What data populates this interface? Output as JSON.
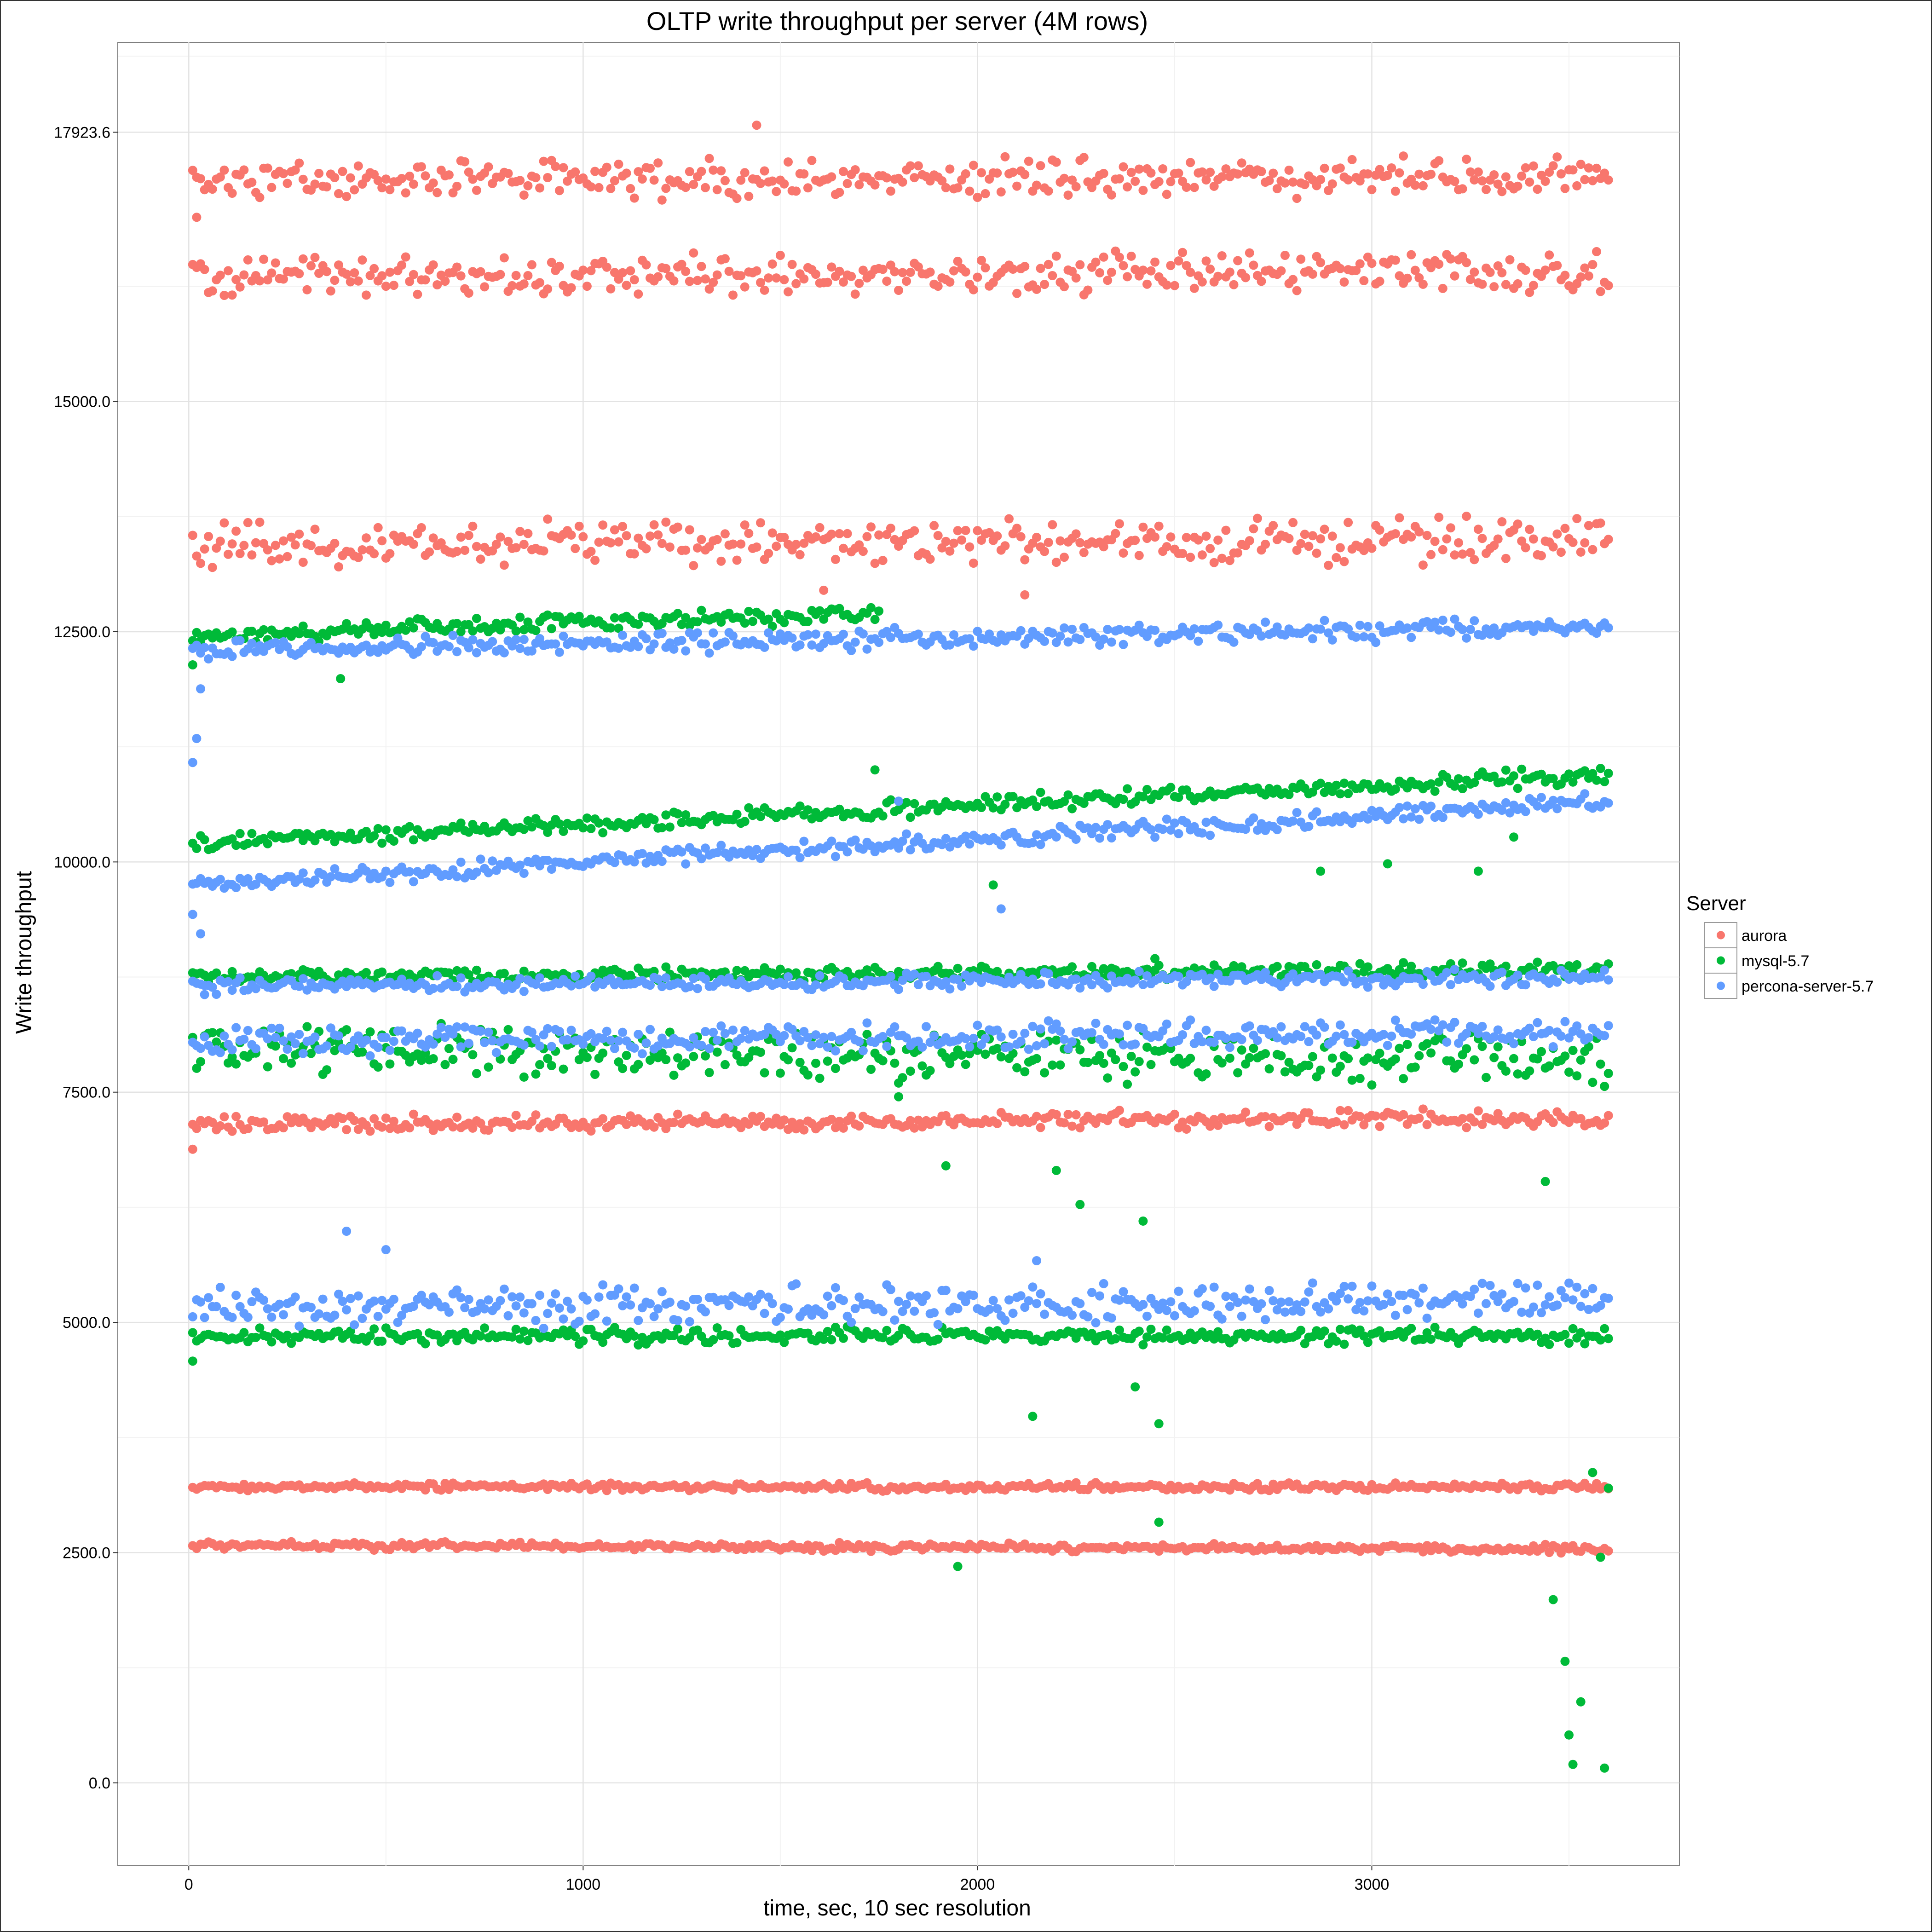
{
  "chart_data": {
    "type": "scatter",
    "title": "OLTP write throughput per server (4M rows)",
    "xlabel": "time, sec, 10 sec resolution",
    "ylabel": "Write throughput",
    "xlim": [
      -180,
      3780
    ],
    "ylim": [
      -900,
      18900
    ],
    "x_ticks": [
      0,
      1000,
      2000,
      3000
    ],
    "x_tick_labels": [
      "0",
      "1000",
      "2000",
      "3000"
    ],
    "y_ticks": [
      0,
      2500,
      5000,
      7500,
      10000,
      12500,
      15000,
      17923.6
    ],
    "y_tick_labels": [
      "0.0",
      "2500.0",
      "5000.0",
      "7500.0",
      "10000.0",
      "12500.0",
      "15000.0",
      "17923.6"
    ],
    "grid": true,
    "legend": {
      "title": "Server",
      "position": "right"
    },
    "x_range": [
      10,
      3600
    ],
    "x_step": 10,
    "series": [
      {
        "name": "aurora",
        "color": "#F8766D",
        "bands": [
          {
            "from": 10,
            "to": 3600,
            "start": 17400,
            "end": 17450,
            "jitter": 250
          },
          {
            "from": 10,
            "to": 3600,
            "start": 16350,
            "end": 16400,
            "jitter": 260
          },
          {
            "from": 10,
            "to": 3600,
            "start": 13450,
            "end": 13500,
            "jitter": 280
          },
          {
            "from": 10,
            "to": 3600,
            "start": 7150,
            "end": 7220,
            "jitter": 110
          },
          {
            "from": 10,
            "to": 3600,
            "start": 3220,
            "end": 3210,
            "jitter": 50
          },
          {
            "from": 10,
            "to": 3600,
            "start": 2580,
            "end": 2540,
            "jitter": 50
          }
        ],
        "points": [
          [
            10,
            6880
          ],
          [
            20,
            17000
          ],
          [
            1440,
            18000
          ],
          [
            1610,
            12950
          ],
          [
            2120,
            12900
          ]
        ]
      },
      {
        "name": "mysql-5.7",
        "color": "#00BA38",
        "bands": [
          {
            "from": 10,
            "to": 1750,
            "start": 12450,
            "end": 12700,
            "jitter": 120
          },
          {
            "from": 10,
            "to": 3600,
            "start": 10200,
            "end": 10950,
            "jitter": 110
          },
          {
            "from": 10,
            "to": 3600,
            "start": 8750,
            "end": 8830,
            "jitter": 90
          },
          {
            "from": 10,
            "to": 3600,
            "start": 7950,
            "end": 7850,
            "jitter": 320
          },
          {
            "from": 10,
            "to": 3600,
            "start": 4850,
            "end": 4850,
            "jitter": 110
          }
        ],
        "points": [
          [
            10,
            12140
          ],
          [
            10,
            4580
          ],
          [
            385,
            11990
          ],
          [
            1740,
            11000
          ],
          [
            1800,
            7450
          ],
          [
            1920,
            6700
          ],
          [
            1950,
            2350
          ],
          [
            2040,
            9750
          ],
          [
            2140,
            3980
          ],
          [
            2200,
            6650
          ],
          [
            2260,
            6280
          ],
          [
            2400,
            4300
          ],
          [
            2420,
            6100
          ],
          [
            2450,
            8950
          ],
          [
            2460,
            3900
          ],
          [
            2460,
            2830
          ],
          [
            2870,
            9900
          ],
          [
            3040,
            9980
          ],
          [
            3270,
            9900
          ],
          [
            3360,
            10270
          ],
          [
            3440,
            6530
          ],
          [
            3460,
            1990
          ],
          [
            3490,
            1320
          ],
          [
            3500,
            520
          ],
          [
            3510,
            200
          ],
          [
            3530,
            880
          ],
          [
            3560,
            3370
          ],
          [
            3580,
            2450
          ],
          [
            3590,
            160
          ],
          [
            3600,
            3200
          ]
        ]
      },
      {
        "name": "percona-server-5.7",
        "color": "#619CFF",
        "bands": [
          {
            "from": 10,
            "to": 3600,
            "start": 12300,
            "end": 12550,
            "jitter": 130
          },
          {
            "from": 10,
            "to": 3600,
            "start": 9750,
            "end": 10650,
            "jitter": 110
          },
          {
            "from": 10,
            "to": 3600,
            "start": 8650,
            "end": 8750,
            "jitter": 100
          },
          {
            "from": 10,
            "to": 3600,
            "start": 8050,
            "end": 8150,
            "jitter": 180
          },
          {
            "from": 10,
            "to": 3600,
            "start": 5150,
            "end": 5250,
            "jitter": 250
          }
        ],
        "points": [
          [
            10,
            11080
          ],
          [
            20,
            11340
          ],
          [
            30,
            11880
          ],
          [
            10,
            9430
          ],
          [
            30,
            9220
          ],
          [
            40,
            8560
          ],
          [
            400,
            5990
          ],
          [
            500,
            5790
          ],
          [
            1800,
            10660
          ],
          [
            2060,
            9490
          ],
          [
            2150,
            5670
          ]
        ]
      }
    ]
  }
}
